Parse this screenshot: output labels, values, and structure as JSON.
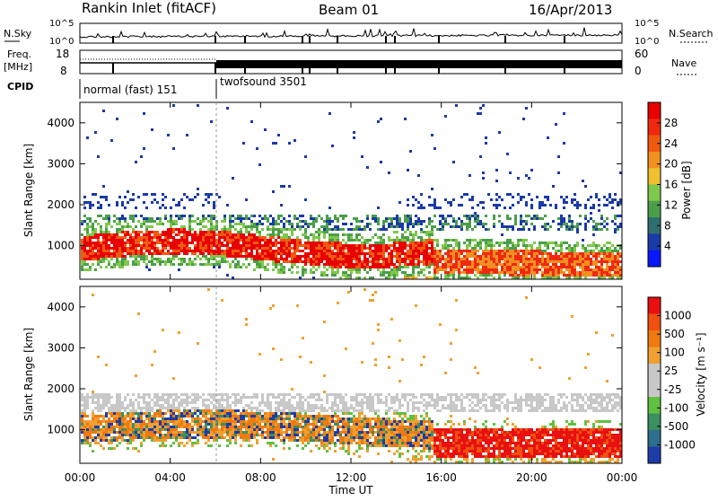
{
  "header": {
    "station": "Rankin Inlet (fitACF)",
    "beam": "Beam 01",
    "date": "16/Apr/2013"
  },
  "nsky_panel": {
    "left_label": "N.Sky",
    "right_label": "N.Search",
    "left_ticks": [
      "10^5",
      "10^0"
    ],
    "right_ticks": [
      "10^5",
      "10^0"
    ]
  },
  "freq_panel": {
    "left_label_1": "Freq.",
    "left_label_2": "[MHz]",
    "right_label": "Nave",
    "left_ticks": [
      "18",
      "8"
    ],
    "right_ticks": [
      "60",
      "0"
    ]
  },
  "cpid": {
    "label": "CPID",
    "modes": [
      "normal (fast) 151",
      "twofsound 3501"
    ]
  },
  "chart_data": [
    {
      "type": "heatmap",
      "name": "power",
      "ylabel": "Slant Range [km]",
      "yticks": [
        1000,
        2000,
        3000,
        4000
      ],
      "ylim": [
        180,
        4500
      ],
      "colorbar_label": "Power [dB]",
      "colorbar_ticks": [
        "28",
        "24",
        "20",
        "16",
        "12",
        "8",
        "4"
      ],
      "colors": [
        "#0a18ff",
        "#1a3aa8",
        "#2e6e6e",
        "#4a9e4a",
        "#7ec84a",
        "#f0c030",
        "#f09020",
        "#f05a10",
        "#f02810",
        "#e80000"
      ]
    },
    {
      "type": "heatmap",
      "name": "velocity",
      "ylabel": "Slant Range [km]",
      "yticks": [
        1000,
        2000,
        3000,
        4000
      ],
      "ylim": [
        180,
        4500
      ],
      "colorbar_label": "Velocity [m s⁻¹]",
      "colorbar_ticks": [
        "1000",
        "500",
        "100",
        "25",
        "-25",
        "-100",
        "-500",
        "-1000"
      ],
      "colors": [
        "#1c3ca8",
        "#2e6e8e",
        "#3a9060",
        "#60c040",
        "#c8c8c8",
        "#c8c8c8",
        "#f0a030",
        "#f07a10",
        "#f05010",
        "#e81010"
      ]
    }
  ],
  "xaxis": {
    "label": "Time UT",
    "ticks": [
      "00:00",
      "04:00",
      "08:00",
      "12:00",
      "16:00",
      "20:00",
      "00:00"
    ]
  }
}
